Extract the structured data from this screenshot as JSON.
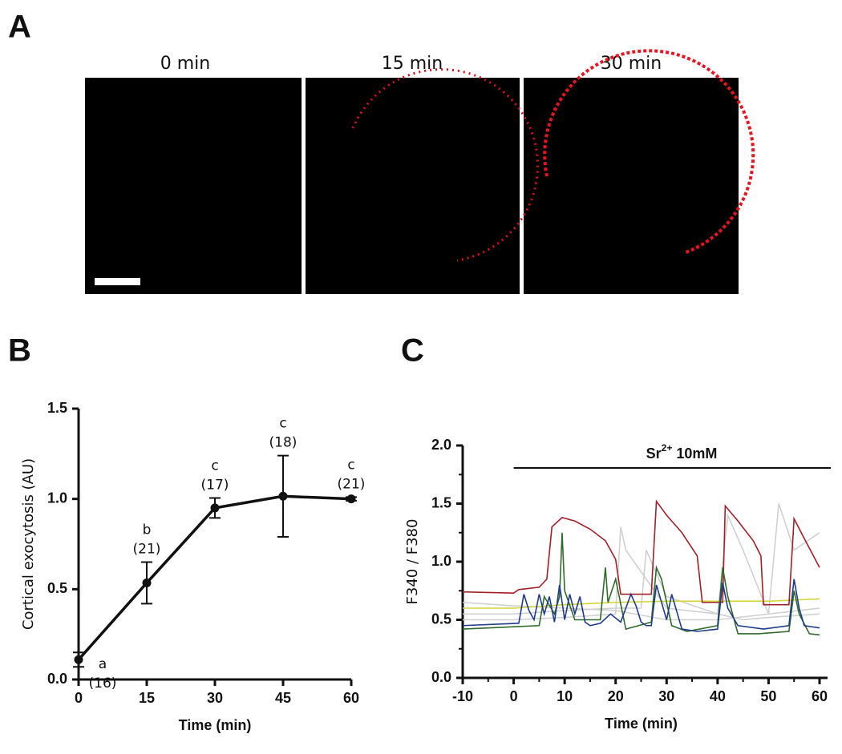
{
  "panel_labels": [
    "A",
    "B",
    "C"
  ],
  "images": [
    {
      "title": "0 min"
    },
    {
      "title": "15 min"
    },
    {
      "title": "30 min"
    }
  ],
  "chart_data": [
    {
      "type": "line",
      "x": [
        0,
        15,
        30,
        45,
        60
      ],
      "values": [
        0.11,
        0.535,
        0.95,
        1.015,
        1.0
      ],
      "errors": [
        0.04,
        0.115,
        0.055,
        0.225,
        0.01
      ],
      "point_labels": [
        "a",
        "b",
        "c",
        "c",
        "c"
      ],
      "n_labels": [
        "(16)",
        "(21)",
        "(17)",
        "(18)",
        "(21)"
      ],
      "color": "#111111",
      "xlabel": "Time (min)",
      "ylabel": "Cortical exocytosis (AU)",
      "xlim": [
        0,
        60
      ],
      "xticks": [
        0,
        15,
        30,
        45,
        60
      ],
      "ylim": [
        0,
        1.5
      ],
      "yticks": [
        {
          "value": 0,
          "label": "0.0"
        },
        0.5,
        {
          "value": 1,
          "label": "1.0"
        },
        1.5
      ]
    },
    {
      "type": "line",
      "xlabel": "Time (min)",
      "ylabel": "F340 / F380",
      "xlim": [
        -10,
        60
      ],
      "xticks": [
        -10,
        0,
        10,
        20,
        30,
        40,
        50,
        60
      ],
      "ylim": [
        0,
        2
      ],
      "yticks": [
        {
          "value": 0,
          "label": "0.0"
        },
        0.5,
        {
          "value": 1,
          "label": "1.0"
        },
        1.5,
        {
          "value": 2,
          "label": "2.0"
        }
      ],
      "annotation": {
        "text": "Sr",
        "superscript": "2+",
        "suffix": " 10mM",
        "x_start": 0
      },
      "series": [
        {
          "color": "#d0d0d0",
          "x": [
            -10,
            0,
            10,
            20,
            25,
            26,
            30,
            40,
            45,
            50,
            60
          ],
          "values": [
            0.55,
            0.55,
            0.58,
            0.6,
            0.6,
            1.1,
            0.7,
            0.55,
            0.5,
            0.52,
            0.55
          ]
        },
        {
          "color": "#d0d0d0",
          "x": [
            -10,
            0,
            10,
            20,
            21,
            22,
            30,
            40,
            42,
            45,
            50,
            60
          ],
          "values": [
            0.5,
            0.5,
            0.52,
            0.55,
            1.3,
            1.1,
            0.6,
            0.55,
            1.4,
            1.1,
            0.55,
            0.6
          ]
        },
        {
          "color": "#d0d0d0",
          "x": [
            -10,
            0,
            10,
            20,
            30,
            40,
            50,
            52,
            55,
            60
          ],
          "values": [
            0.65,
            0.62,
            0.6,
            0.58,
            0.5,
            0.5,
            0.55,
            1.5,
            1.1,
            1.25
          ]
        },
        {
          "color": "#d4d43a",
          "x": [
            -10,
            0,
            10,
            20,
            30,
            40,
            50,
            60
          ],
          "values": [
            0.6,
            0.6,
            0.63,
            0.65,
            0.66,
            0.66,
            0.66,
            0.68
          ]
        },
        {
          "color": "#a31f2a",
          "x": [
            -10,
            0,
            1,
            5,
            6.5,
            7.5,
            9.5,
            12,
            15,
            18,
            20,
            21,
            27,
            28,
            30,
            33,
            36,
            37,
            41,
            41.5,
            44,
            47,
            48.5,
            49,
            54,
            55,
            57,
            60
          ],
          "values": [
            0.74,
            0.73,
            0.76,
            0.78,
            0.85,
            1.3,
            1.38,
            1.35,
            1.28,
            1.18,
            1.02,
            0.72,
            0.72,
            1.52,
            1.4,
            1.25,
            1.05,
            0.65,
            0.65,
            1.48,
            1.35,
            1.18,
            1.05,
            0.63,
            0.63,
            1.37,
            1.2,
            0.95
          ]
        },
        {
          "color": "#2f6b2a",
          "x": [
            -10,
            5,
            6,
            8,
            9,
            9.5,
            10,
            12,
            17,
            18,
            18.5,
            20,
            22,
            27,
            28,
            29,
            31,
            34,
            40,
            41,
            42,
            44,
            48,
            54,
            55,
            56,
            58,
            60
          ],
          "values": [
            0.42,
            0.45,
            0.7,
            0.55,
            0.7,
            1.25,
            0.75,
            0.5,
            0.5,
            0.95,
            0.65,
            0.85,
            0.42,
            0.48,
            0.95,
            0.85,
            0.45,
            0.4,
            0.45,
            0.95,
            0.7,
            0.38,
            0.38,
            0.4,
            0.75,
            0.55,
            0.38,
            0.37
          ]
        },
        {
          "color": "#1f3c8c",
          "x": [
            -10,
            1,
            2,
            3,
            4,
            5,
            6,
            7,
            8,
            9,
            10,
            11,
            12,
            13,
            14,
            15,
            17,
            19,
            21,
            23,
            24,
            25,
            26,
            27,
            28,
            30,
            31,
            33,
            36,
            40,
            41,
            42,
            44,
            49,
            54,
            55,
            56,
            57,
            60
          ],
          "values": [
            0.45,
            0.47,
            0.72,
            0.58,
            0.5,
            0.72,
            0.55,
            0.7,
            0.48,
            0.8,
            0.5,
            0.72,
            0.55,
            0.7,
            0.48,
            0.45,
            0.47,
            0.55,
            0.48,
            0.72,
            0.62,
            0.48,
            0.45,
            0.45,
            0.8,
            0.5,
            0.72,
            0.42,
            0.4,
            0.42,
            0.82,
            0.6,
            0.45,
            0.42,
            0.45,
            0.85,
            0.6,
            0.45,
            0.43
          ]
        }
      ]
    }
  ]
}
